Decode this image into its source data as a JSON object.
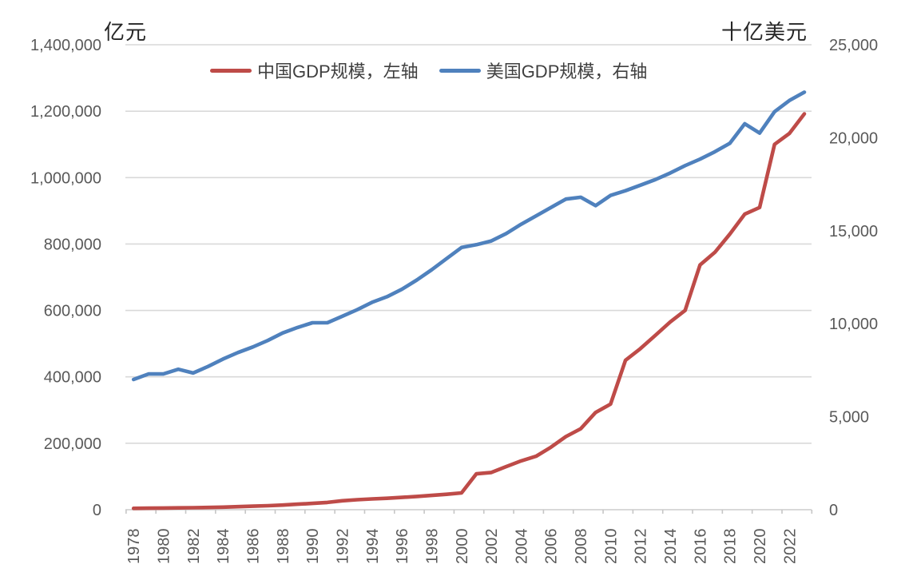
{
  "chart_data": {
    "type": "line",
    "title": "",
    "legend_position": "top",
    "grid": true,
    "left_axis": {
      "title": "亿元",
      "min": 0,
      "max": 1400000,
      "tick_interval": 200000,
      "tick_labels": [
        "0",
        "200,000",
        "400,000",
        "600,000",
        "800,000",
        "1,000,000",
        "1,200,000",
        "1,400,000"
      ]
    },
    "right_axis": {
      "title": "十亿美元",
      "min": 0,
      "max": 25000,
      "tick_interval": 5000,
      "tick_labels": [
        "0",
        "5,000",
        "10,000",
        "15,000",
        "20,000",
        "25,000"
      ]
    },
    "x_axis": {
      "years": [
        1978,
        1979,
        1980,
        1981,
        1982,
        1983,
        1984,
        1985,
        1986,
        1987,
        1988,
        1989,
        1990,
        1991,
        1992,
        1993,
        1994,
        1995,
        1996,
        1997,
        1998,
        1999,
        2000,
        2001,
        2002,
        2003,
        2004,
        2005,
        2006,
        2007,
        2008,
        2009,
        2010,
        2011,
        2012,
        2013,
        2014,
        2015,
        2016,
        2017,
        2018,
        2019,
        2020,
        2021,
        2022,
        2023
      ],
      "tick_labels": [
        "1978",
        "1980",
        "1982",
        "1984",
        "1986",
        "1988",
        "1990",
        "1992",
        "1994",
        "1996",
        "1998",
        "2000",
        "2002",
        "2004",
        "2006",
        "2008",
        "2010",
        "2012",
        "2014",
        "2016",
        "2018",
        "2020",
        "2022"
      ]
    },
    "series": [
      {
        "name": "中国GDP规模，左轴",
        "axis": "left",
        "color": "#BE4B48",
        "values": [
          4000,
          4500,
          5000,
          5500,
          6000,
          6800,
          7800,
          9100,
          10500,
          12100,
          14000,
          16500,
          19000,
          22000,
          27000,
          30000,
          32500,
          34500,
          37000,
          40000,
          43000,
          46500,
          50500,
          108000,
          112000,
          130000,
          147000,
          161000,
          188000,
          220000,
          244000,
          293000,
          318000,
          450000,
          485000,
          525000,
          565000,
          600000,
          737000,
          775000,
          830000,
          890000,
          910000,
          1100000,
          1133000,
          1192000
        ]
      },
      {
        "name": "美国GDP规模，右轴",
        "axis": "right",
        "color": "#4F81BD",
        "values": [
          7000,
          7300,
          7300,
          7550,
          7350,
          7700,
          8100,
          8450,
          8750,
          9100,
          9500,
          9800,
          10050,
          10050,
          10400,
          10750,
          11150,
          11450,
          11850,
          12350,
          12900,
          13500,
          14100,
          14250,
          14450,
          14850,
          15350,
          15800,
          16250,
          16700,
          16800,
          16350,
          16900,
          17150,
          17450,
          17750,
          18100,
          18500,
          18850,
          19250,
          19700,
          20750,
          20250,
          21400,
          22000,
          22450
        ]
      }
    ],
    "colors": {
      "gridline": "#D9D9D9",
      "tick_mark": "#C6C6C6",
      "tick_label_text": "#595959",
      "background": "#FFFFFF"
    }
  }
}
